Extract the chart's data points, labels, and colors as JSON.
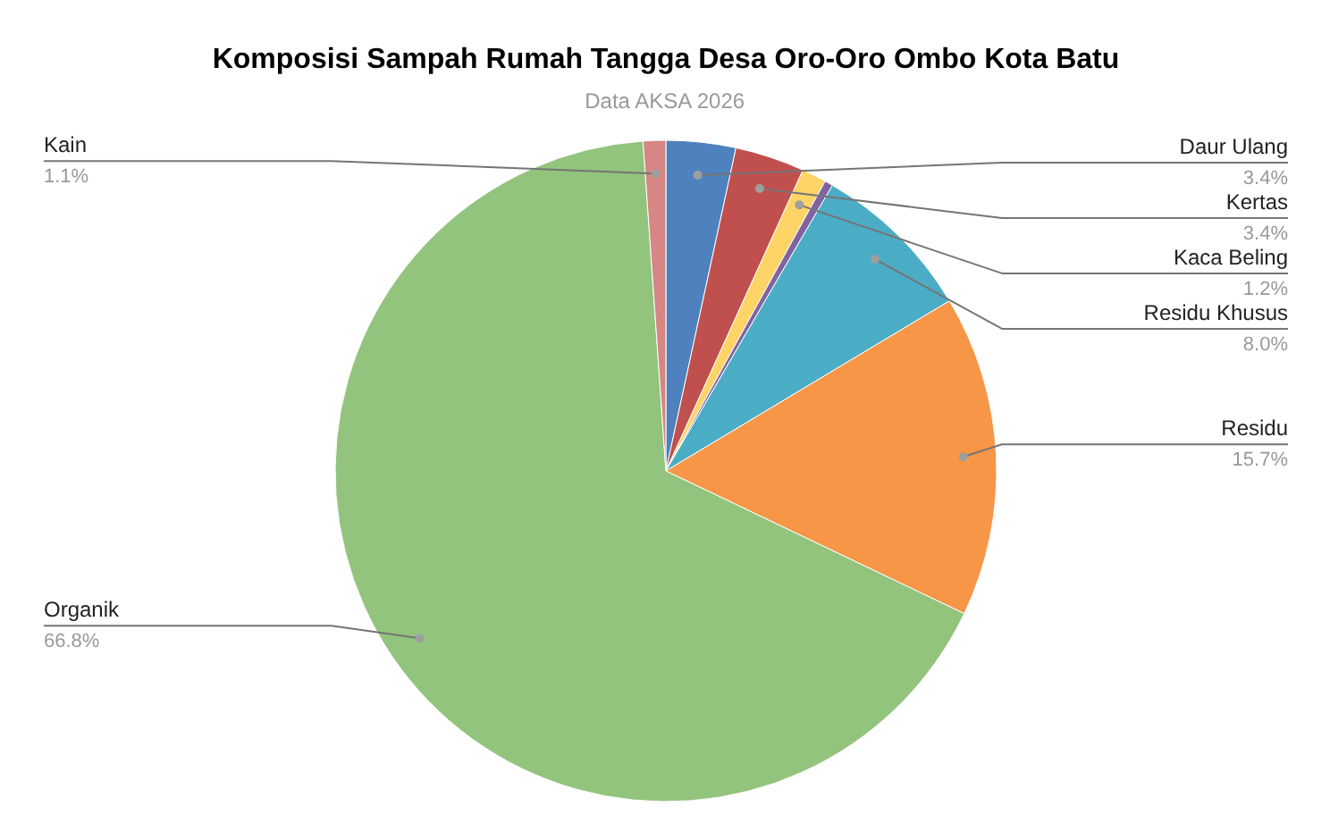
{
  "chart_data": {
    "type": "pie",
    "title": "Komposisi Sampah Rumah Tangga Desa Oro-Oro Ombo Kota Batu",
    "subtitle": "Data AKSA 2026",
    "categories": [
      "Daur Ulang",
      "Kertas",
      "Kaca Beling",
      null,
      "Residu Khusus",
      "Residu",
      "Organik",
      "Kain"
    ],
    "values": [
      3.4,
      3.4,
      1.2,
      0.4,
      8.0,
      15.7,
      66.8,
      1.1
    ],
    "colors": [
      "#4e81bd",
      "#c0504d",
      "#fdd465",
      "#8064a2",
      "#4bacc6",
      "#f79646",
      "#93c47d",
      "#d68683"
    ],
    "value_labels": [
      "3.4%",
      "3.4%",
      "1.2%",
      null,
      "8.0%",
      "15.7%",
      "66.8%",
      "1.1%"
    ]
  }
}
